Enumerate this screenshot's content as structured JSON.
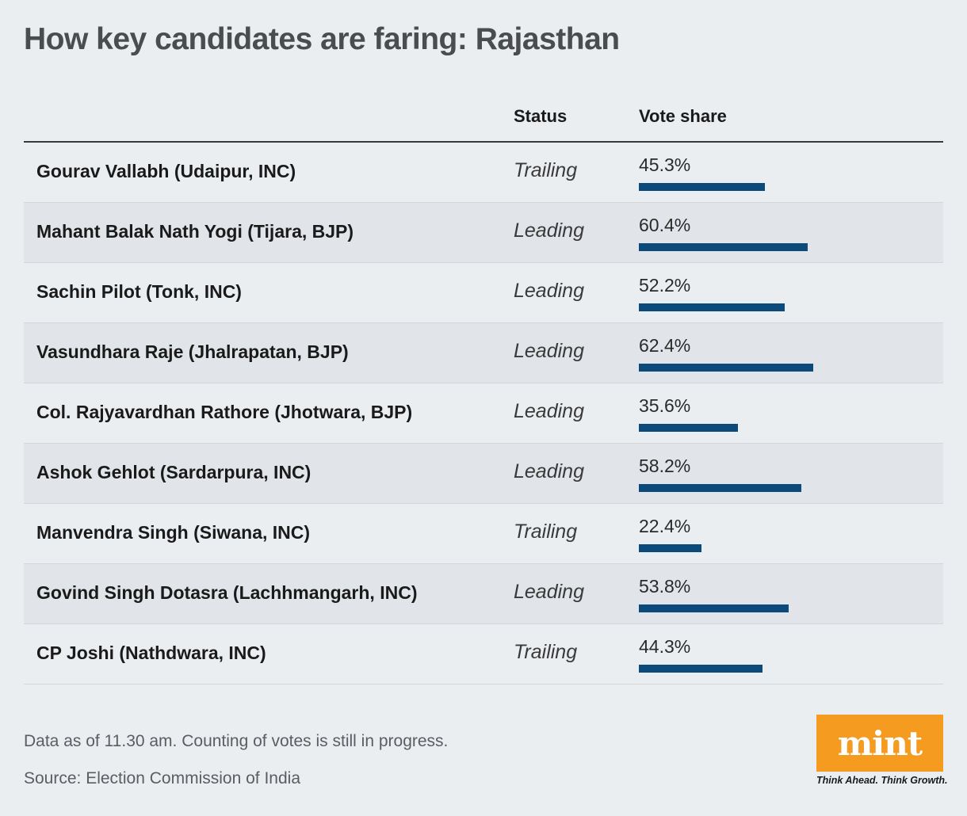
{
  "title": "How key candidates are faring: Rajasthan",
  "headers": {
    "status": "Status",
    "vote_share": "Vote share"
  },
  "chart_data": {
    "type": "bar",
    "categories": [
      "Gourav Vallabh (Udaipur, INC)",
      "Mahant Balak Nath Yogi (Tijara, BJP)",
      "Sachin Pilot (Tonk, INC)",
      "Vasundhara Raje (Jhalrapatan, BJP)",
      "Col. Rajyavardhan Rathore (Jhotwara, BJP)",
      "Ashok Gehlot (Sardarpura, INC)",
      "Manvendra Singh (Siwana, INC)",
      "Govind Singh Dotasra (Lachhmangarh, INC)",
      "CP Joshi (Nathdwara, INC)"
    ],
    "status": [
      "Trailing",
      "Leading",
      "Leading",
      "Leading",
      "Leading",
      "Leading",
      "Trailing",
      "Leading",
      "Trailing"
    ],
    "values": [
      45.3,
      60.4,
      52.2,
      62.4,
      35.6,
      58.2,
      22.4,
      53.8,
      44.3
    ],
    "labels": [
      "45.3%",
      "60.4%",
      "52.2%",
      "62.4%",
      "35.6%",
      "58.2%",
      "22.4%",
      "53.8%",
      "44.3%"
    ],
    "bar_color": "#0b4a7a",
    "xlim": [
      0,
      100
    ]
  },
  "footnote": "Data as of 11.30 am. Counting of votes is still in progress.",
  "source": "Source: Election Commission of India",
  "logo": {
    "text": "mint",
    "tagline": "Think Ahead. Think Growth.",
    "color": "#f59b1f"
  }
}
